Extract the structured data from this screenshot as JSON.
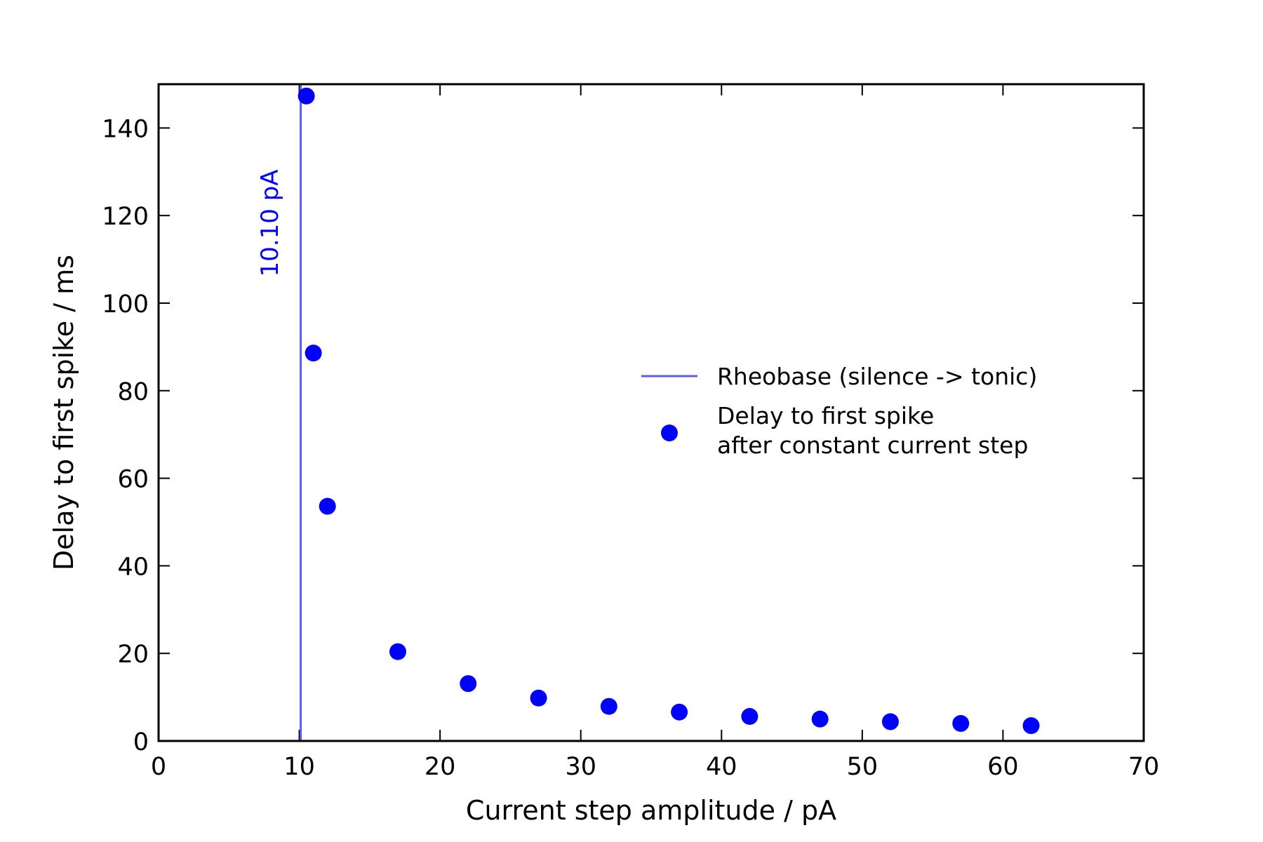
{
  "chart_data": {
    "type": "scatter",
    "xlabel": "Current step amplitude / pA",
    "ylabel": "Delay to first spike / ms",
    "xlim": [
      0,
      70
    ],
    "ylim": [
      0,
      150
    ],
    "xticks": [
      "0",
      "10",
      "20",
      "30",
      "40",
      "50",
      "60",
      "70"
    ],
    "yticks": [
      "0",
      "20",
      "40",
      "60",
      "80",
      "100",
      "120",
      "140"
    ],
    "grid": false,
    "legend_position": "center-right",
    "reference_line": {
      "orientation": "vertical",
      "x": 10.1,
      "name": "Rheobase (silence -> tonic)",
      "label": "10.10 pA",
      "color": "#5c5cf5"
    },
    "series": [
      {
        "name_lines": [
          "Delay to first spike",
          "after constant current step"
        ],
        "color": "#0000ff",
        "x": [
          10.5,
          11,
          12,
          17,
          22,
          27,
          32,
          37,
          42,
          47,
          52,
          57,
          62
        ],
        "y": [
          147.3,
          88.6,
          53.6,
          20.4,
          13.1,
          9.8,
          7.9,
          6.6,
          5.6,
          5.0,
          4.4,
          4.0,
          3.5
        ]
      }
    ]
  }
}
